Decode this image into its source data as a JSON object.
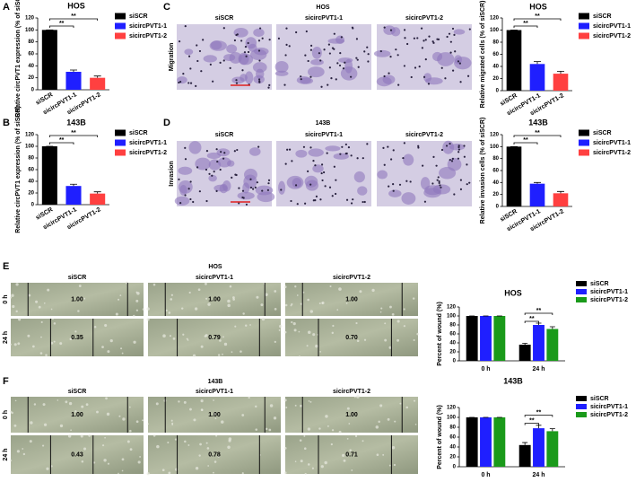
{
  "panel_labels": [
    "A",
    "B",
    "C",
    "D",
    "E",
    "F"
  ],
  "chart_data": [
    {
      "type": "bar",
      "title": "HOS",
      "ylabel": "Relative circPVT1 expression (% of siSCR)",
      "categories": [
        "siSCR",
        "sicircPVT1-1",
        "sicircPVT1-2"
      ],
      "values": [
        100,
        30,
        20
      ],
      "errors": [
        0,
        3,
        3
      ],
      "colors": [
        "#000000",
        "#1f1fff",
        "#ff4040"
      ],
      "ylim": [
        0,
        120
      ],
      "yticks": [
        0,
        20,
        40,
        60,
        80,
        100,
        120
      ],
      "annotations": [
        "**",
        "**"
      ]
    },
    {
      "type": "bar",
      "title": "143B",
      "ylabel": "Relative circPVT1 expression (% of siSCR)",
      "categories": [
        "siSCR",
        "sicircPVT1-1",
        "sicircPVT1-2"
      ],
      "values": [
        100,
        32,
        19
      ],
      "errors": [
        0,
        3,
        3
      ],
      "colors": [
        "#000000",
        "#1f1fff",
        "#ff4040"
      ],
      "ylim": [
        0,
        120
      ],
      "yticks": [
        0,
        20,
        40,
        60,
        80,
        100,
        120
      ],
      "annotations": [
        "**",
        "**"
      ]
    },
    {
      "type": "bar",
      "title": "HOS",
      "ylabel": "Relative migrated cells (% of siSCR)",
      "categories": [
        "siSCR",
        "sicircPVT1-1",
        "sicircPVT1-2"
      ],
      "values": [
        100,
        44,
        28
      ],
      "errors": [
        0,
        4,
        4
      ],
      "colors": [
        "#000000",
        "#1f1fff",
        "#ff4040"
      ],
      "ylim": [
        0,
        120
      ],
      "yticks": [
        0,
        20,
        40,
        60,
        80,
        100,
        120
      ],
      "annotations": [
        "**",
        "**"
      ]
    },
    {
      "type": "bar",
      "title": "143B",
      "ylabel": "Relative invasion cells (% of siSCR)",
      "categories": [
        "siSCR",
        "sicircPVT1-1",
        "sicircPVT1-2"
      ],
      "values": [
        100,
        38,
        22
      ],
      "errors": [
        0,
        2,
        3
      ],
      "colors": [
        "#000000",
        "#1f1fff",
        "#ff4040"
      ],
      "ylim": [
        0,
        120
      ],
      "yticks": [
        0,
        20,
        40,
        60,
        80,
        100,
        120
      ],
      "annotations": [
        "**",
        "**"
      ]
    },
    {
      "type": "grouped",
      "title": "HOS",
      "ylabel": "Percent of wound (%)",
      "categories": [
        "0 h",
        "24 h"
      ],
      "series": [
        {
          "name": "siSCR",
          "color": "#000000",
          "values": [
            100,
            36
          ],
          "errors": [
            0,
            3
          ]
        },
        {
          "name": "sicircPVT1-1",
          "color": "#1f1fff",
          "values": [
            100,
            80
          ],
          "errors": [
            0,
            4
          ]
        },
        {
          "name": "sicircPVT1-2",
          "color": "#1a9a1a",
          "values": [
            100,
            71
          ],
          "errors": [
            0,
            5
          ]
        }
      ],
      "ylim": [
        0,
        120
      ],
      "yticks": [
        0,
        20,
        40,
        60,
        80,
        100,
        120
      ],
      "annotations": [
        "**",
        "**"
      ]
    },
    {
      "type": "grouped",
      "title": "143B",
      "ylabel": "Percent of wound (%)",
      "categories": [
        "0 h",
        "24 h"
      ],
      "series": [
        {
          "name": "siSCR",
          "color": "#000000",
          "values": [
            100,
            44
          ],
          "errors": [
            0,
            5
          ]
        },
        {
          "name": "sicircPVT1-1",
          "color": "#1f1fff",
          "values": [
            100,
            78
          ],
          "errors": [
            0,
            6
          ]
        },
        {
          "name": "sicircPVT1-2",
          "color": "#1a9a1a",
          "values": [
            100,
            72
          ],
          "errors": [
            0,
            5
          ]
        }
      ],
      "ylim": [
        0,
        120
      ],
      "yticks": [
        0,
        20,
        40,
        60,
        80,
        100,
        120
      ],
      "annotations": [
        "**",
        "**"
      ]
    }
  ],
  "micrographs": [
    {
      "title": "HOS",
      "row_label": "Migration",
      "columns": [
        "siSCR",
        "sicircPVT1-1",
        "sicircPVT1-2"
      ]
    },
    {
      "title": "143B",
      "row_label": "Invasion",
      "columns": [
        "siSCR",
        "sicircPVT1-1",
        "sicircPVT1-2"
      ]
    }
  ],
  "wound_assays": [
    {
      "title": "HOS",
      "columns": [
        "siSCR",
        "sicircPVT1-1",
        "sicircPVT1-2"
      ],
      "rows": [
        {
          "label": "0 h",
          "values": [
            "1.00",
            "1.00",
            "1.00"
          ]
        },
        {
          "label": "24 h",
          "values": [
            "0.35",
            "0.79",
            "0.70"
          ]
        }
      ]
    },
    {
      "title": "143B",
      "columns": [
        "siSCR",
        "sicircPVT1-1",
        "sicircPVT1-2"
      ],
      "rows": [
        {
          "label": "0 h",
          "values": [
            "1.00",
            "1.00",
            "1.00"
          ]
        },
        {
          "label": "24 h",
          "values": [
            "0.43",
            "0.78",
            "0.71"
          ]
        }
      ]
    }
  ]
}
